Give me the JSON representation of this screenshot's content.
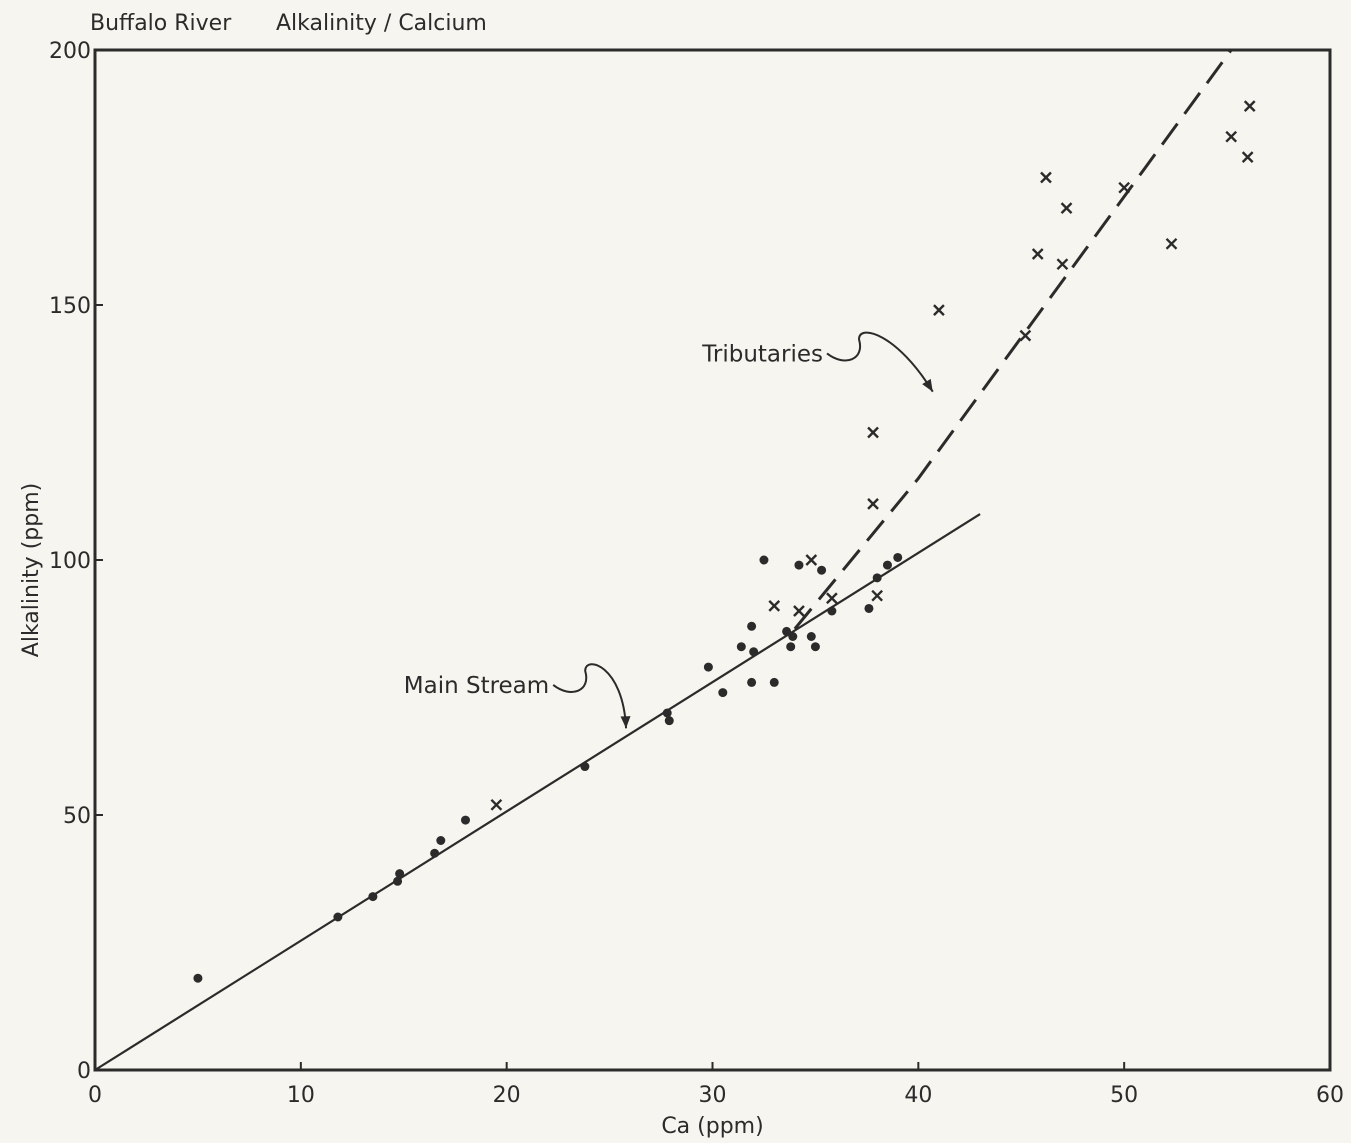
{
  "chart_data": {
    "type": "scatter",
    "title": "Buffalo River",
    "subtitle": "Alkalinity / Calcium",
    "xlabel": "Ca (ppm)",
    "ylabel": "Alkalinity (ppm)",
    "xlim": [
      0,
      60
    ],
    "ylim": [
      0,
      200
    ],
    "xticks": [
      0,
      10,
      20,
      30,
      40,
      50,
      60
    ],
    "yticks": [
      0,
      50,
      100,
      150,
      200
    ],
    "xtick_labels": [
      "0",
      "10",
      "20",
      "30",
      "40",
      "50",
      "60"
    ],
    "ytick_labels": [
      "0",
      "50",
      "100",
      "150",
      "200"
    ],
    "grid": false,
    "series": [
      {
        "marker": "dot",
        "points": [
          [
            5.0,
            18
          ],
          [
            11.8,
            30
          ],
          [
            13.5,
            34
          ],
          [
            14.7,
            37
          ],
          [
            14.8,
            38.5
          ],
          [
            16.5,
            42.5
          ],
          [
            16.8,
            45
          ],
          [
            18.0,
            49
          ],
          [
            23.8,
            59.5
          ],
          [
            27.8,
            70
          ],
          [
            27.9,
            68.5
          ],
          [
            29.8,
            79
          ],
          [
            30.5,
            74
          ],
          [
            31.4,
            83
          ],
          [
            31.9,
            76
          ],
          [
            31.9,
            87
          ],
          [
            32.0,
            82
          ],
          [
            32.5,
            100
          ],
          [
            33.0,
            76
          ],
          [
            33.6,
            86
          ],
          [
            33.8,
            83
          ],
          [
            33.9,
            85
          ],
          [
            34.2,
            99
          ],
          [
            34.8,
            85
          ],
          [
            35.0,
            83
          ],
          [
            35.3,
            98
          ],
          [
            35.8,
            90
          ],
          [
            37.6,
            90.5
          ],
          [
            38.0,
            96.5
          ],
          [
            38.5,
            99
          ],
          [
            39.0,
            100.5
          ]
        ]
      },
      {
        "marker": "x",
        "points": [
          [
            19.5,
            52
          ],
          [
            33.0,
            91
          ],
          [
            34.2,
            90
          ],
          [
            34.8,
            100
          ],
          [
            35.8,
            92.5
          ],
          [
            37.8,
            111
          ],
          [
            37.8,
            125
          ],
          [
            38.0,
            93
          ],
          [
            41.0,
            149
          ],
          [
            45.2,
            144
          ],
          [
            45.8,
            160
          ],
          [
            46.2,
            175
          ],
          [
            47.0,
            158
          ],
          [
            47.2,
            169
          ],
          [
            50.0,
            173
          ],
          [
            52.3,
            162
          ],
          [
            55.2,
            183
          ],
          [
            56.0,
            179
          ],
          [
            56.1,
            189
          ]
        ]
      }
    ],
    "fit_lines": [
      {
        "style": "solid",
        "points": [
          [
            0,
            0
          ],
          [
            43,
            109
          ]
        ]
      },
      {
        "style": "dashed",
        "points": [
          [
            34.0,
            86.5
          ],
          [
            40.0,
            116
          ],
          [
            55.2,
            200
          ]
        ]
      }
    ],
    "annotations": [
      {
        "text": "Main Stream",
        "at": [
          15.0,
          75.5
        ],
        "points_to": [
          25.8,
          67
        ]
      },
      {
        "text": "Tributaries",
        "at": [
          29.5,
          140.5
        ],
        "points_to": [
          40.7,
          133
        ]
      }
    ]
  }
}
